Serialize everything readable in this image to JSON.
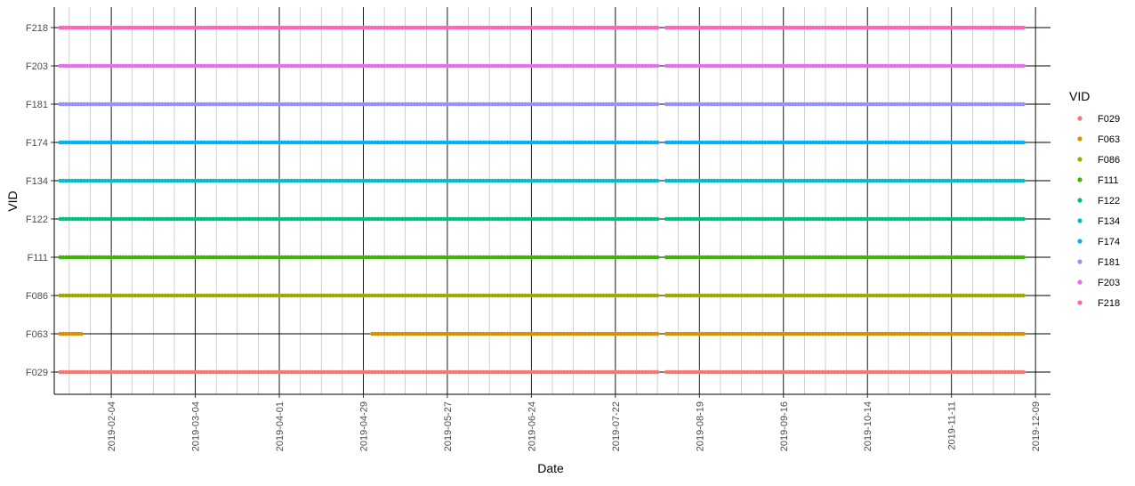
{
  "chart_data": {
    "type": "scatter",
    "title": "",
    "xlabel": "Date",
    "ylabel": "VID",
    "x_type": "date",
    "xlim": [
      "2019-01-16",
      "2019-12-14"
    ],
    "x_major_ticks": [
      "2019-02-04",
      "2019-03-04",
      "2019-04-01",
      "2019-04-29",
      "2019-05-27",
      "2019-06-24",
      "2019-07-22",
      "2019-08-19",
      "2019-09-16",
      "2019-10-14",
      "2019-11-11",
      "2019-12-09"
    ],
    "x_minor_step_days": 7,
    "categories": [
      "F029",
      "F063",
      "F086",
      "F111",
      "F122",
      "F134",
      "F174",
      "F181",
      "F203",
      "F218"
    ],
    "grid": true,
    "legend": {
      "title": "VID",
      "position": "right"
    },
    "series": [
      {
        "name": "F029",
        "color": "#F8766D",
        "ranges": [
          [
            "2019-01-18",
            "2019-08-05"
          ],
          [
            "2019-08-08",
            "2019-12-05"
          ]
        ]
      },
      {
        "name": "F063",
        "color": "#D89000",
        "ranges": [
          [
            "2019-01-18",
            "2019-01-25"
          ],
          [
            "2019-05-02",
            "2019-08-05"
          ],
          [
            "2019-08-08",
            "2019-12-05"
          ]
        ]
      },
      {
        "name": "F086",
        "color": "#A3A500",
        "ranges": [
          [
            "2019-01-18",
            "2019-08-05"
          ],
          [
            "2019-08-08",
            "2019-12-05"
          ]
        ]
      },
      {
        "name": "F111",
        "color": "#39B600",
        "ranges": [
          [
            "2019-01-18",
            "2019-08-05"
          ],
          [
            "2019-08-08",
            "2019-12-05"
          ]
        ]
      },
      {
        "name": "F122",
        "color": "#00BF7D",
        "ranges": [
          [
            "2019-01-18",
            "2019-08-05"
          ],
          [
            "2019-08-08",
            "2019-12-05"
          ]
        ]
      },
      {
        "name": "F134",
        "color": "#00BFC4",
        "ranges": [
          [
            "2019-01-18",
            "2019-08-05"
          ],
          [
            "2019-08-08",
            "2019-12-05"
          ]
        ]
      },
      {
        "name": "F174",
        "color": "#00B0F6",
        "ranges": [
          [
            "2019-01-18",
            "2019-08-05"
          ],
          [
            "2019-08-08",
            "2019-12-05"
          ]
        ]
      },
      {
        "name": "F181",
        "color": "#9590FF",
        "ranges": [
          [
            "2019-01-18",
            "2019-08-05"
          ],
          [
            "2019-08-08",
            "2019-12-05"
          ]
        ]
      },
      {
        "name": "F203",
        "color": "#E76BF3",
        "ranges": [
          [
            "2019-01-18",
            "2019-08-05"
          ],
          [
            "2019-08-08",
            "2019-12-05"
          ]
        ]
      },
      {
        "name": "F218",
        "color": "#FF62BC",
        "ranges": [
          [
            "2019-01-18",
            "2019-08-05"
          ],
          [
            "2019-08-08",
            "2019-12-05"
          ]
        ]
      }
    ]
  }
}
